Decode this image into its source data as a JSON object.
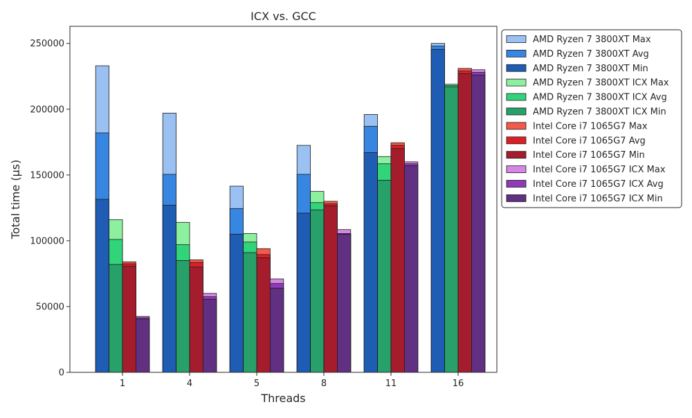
{
  "chart_data": {
    "type": "bar",
    "title": "ICX vs. GCC",
    "xlabel": "Threads",
    "ylabel": "Total time (µs)",
    "categories": [
      "1",
      "4",
      "5",
      "8",
      "11",
      "16"
    ],
    "ylim": [
      0,
      263000
    ],
    "yticks": [
      0,
      50000,
      100000,
      150000,
      200000,
      250000
    ],
    "grid": false,
    "legend_position": "outside-right-top",
    "series": [
      {
        "name": "AMD Ryzen 7 3800XT Max",
        "group": 0,
        "color": "#9bc1f3",
        "values": [
          233000,
          197000,
          141500,
          172500,
          196000,
          250000
        ]
      },
      {
        "name": "AMD Ryzen 7 3800XT Avg",
        "group": 0,
        "color": "#3786e2",
        "values": [
          182000,
          150500,
          124500,
          150500,
          187000,
          248000
        ]
      },
      {
        "name": "AMD Ryzen 7 3800XT Min",
        "group": 0,
        "color": "#1f5cb3",
        "values": [
          131500,
          127000,
          105000,
          121000,
          167000,
          245500
        ]
      },
      {
        "name": "AMD Ryzen 7 3800XT ICX Max",
        "group": 1,
        "color": "#8df09f",
        "values": [
          116000,
          114000,
          105500,
          137500,
          164000,
          219000
        ]
      },
      {
        "name": "AMD Ryzen 7 3800XT ICX Avg",
        "group": 1,
        "color": "#32d47a",
        "values": [
          101000,
          97000,
          99000,
          129000,
          158500,
          218000
        ]
      },
      {
        "name": "AMD Ryzen 7 3800XT ICX Min",
        "group": 1,
        "color": "#27a069",
        "values": [
          82000,
          85000,
          91000,
          123500,
          146000,
          217000
        ]
      },
      {
        "name": "Intel Core i7 1065G7 Max",
        "group": 2,
        "color": "#f25a4c",
        "values": [
          84000,
          85500,
          94000,
          130000,
          174500,
          231000
        ]
      },
      {
        "name": "Intel Core i7 1065G7 Avg",
        "group": 2,
        "color": "#dc1f26",
        "values": [
          82500,
          83500,
          89500,
          128000,
          172500,
          229000
        ]
      },
      {
        "name": "Intel Core i7 1065G7 Min",
        "group": 2,
        "color": "#a51d2d",
        "values": [
          80500,
          80000,
          87000,
          126500,
          170000,
          227000
        ]
      },
      {
        "name": "Intel Core i7 1065G7 ICX Max",
        "group": 3,
        "color": "#d687e4",
        "values": [
          42500,
          60000,
          71000,
          108500,
          160000,
          230000
        ]
      },
      {
        "name": "Intel Core i7 1065G7 ICX Avg",
        "group": 3,
        "color": "#8e3ab9",
        "values": [
          41500,
          57500,
          67500,
          105500,
          158500,
          228000
        ]
      },
      {
        "name": "Intel Core i7 1065G7 ICX Min",
        "group": 3,
        "color": "#623083",
        "values": [
          40500,
          55500,
          64000,
          105000,
          157000,
          226000
        ]
      }
    ]
  }
}
